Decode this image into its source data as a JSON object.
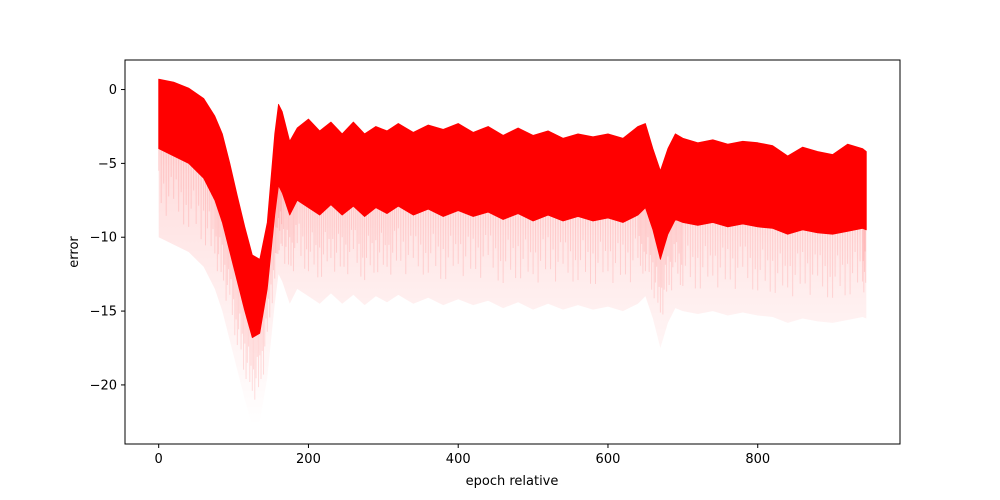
{
  "chart_data": {
    "type": "scatter",
    "title": "",
    "xlabel": "epoch relative",
    "ylabel": "error",
    "xlim": [
      -45,
      990
    ],
    "ylim": [
      -24,
      2
    ],
    "xticks": [
      0,
      200,
      400,
      600,
      800
    ],
    "yticks": [
      0,
      -5,
      -10,
      -15,
      -20
    ],
    "xtick_labels": [
      "0",
      "200",
      "400",
      "600",
      "800"
    ],
    "ytick_labels": [
      "0",
      "−5",
      "−10",
      "−15",
      "−20"
    ],
    "grid": false,
    "legend": "none",
    "color": "#ff0000",
    "series": [
      {
        "band_upper": {
          "x": [
            0,
            20,
            40,
            60,
            75,
            85,
            95,
            105,
            115,
            125,
            135,
            145,
            155,
            160,
            165,
            175,
            185,
            200,
            215,
            230,
            245,
            260,
            275,
            290,
            305,
            320,
            340,
            360,
            380,
            400,
            420,
            440,
            460,
            480,
            500,
            520,
            540,
            560,
            580,
            600,
            620,
            640,
            650,
            660,
            670,
            680,
            690,
            700,
            720,
            740,
            760,
            780,
            800,
            820,
            840,
            860,
            880,
            900,
            920,
            940,
            945
          ],
          "y": [
            0.7,
            0.5,
            0.1,
            -0.6,
            -1.8,
            -3.0,
            -5.0,
            -7.2,
            -9.3,
            -11.2,
            -11.5,
            -9.0,
            -3.0,
            -1.0,
            -1.5,
            -3.5,
            -2.6,
            -2.0,
            -2.8,
            -2.2,
            -3.0,
            -2.2,
            -3.0,
            -2.5,
            -2.8,
            -2.3,
            -2.9,
            -2.4,
            -2.7,
            -2.3,
            -2.9,
            -2.5,
            -3.1,
            -2.6,
            -3.1,
            -2.8,
            -3.3,
            -3.0,
            -3.2,
            -3.0,
            -3.3,
            -2.5,
            -2.3,
            -4.0,
            -5.5,
            -4.0,
            -3.0,
            -3.3,
            -3.6,
            -3.4,
            -3.7,
            -3.5,
            -3.6,
            -3.8,
            -4.5,
            -3.9,
            -4.2,
            -4.4,
            -3.7,
            -4.0,
            -4.2
          ]
        },
        "band_lower": {
          "x": [
            0,
            20,
            40,
            60,
            75,
            85,
            95,
            105,
            115,
            125,
            135,
            145,
            155,
            160,
            165,
            175,
            185,
            200,
            215,
            230,
            245,
            260,
            275,
            290,
            305,
            320,
            340,
            360,
            380,
            400,
            420,
            440,
            460,
            480,
            500,
            520,
            540,
            560,
            580,
            600,
            620,
            640,
            650,
            660,
            670,
            680,
            690,
            700,
            720,
            740,
            760,
            780,
            800,
            820,
            840,
            860,
            880,
            900,
            920,
            940,
            945
          ],
          "y": [
            -4.0,
            -4.5,
            -5.0,
            -6.0,
            -7.5,
            -9.0,
            -11.0,
            -13.0,
            -15.0,
            -16.8,
            -16.5,
            -13.5,
            -8.5,
            -6.5,
            -7.0,
            -8.5,
            -7.5,
            -8.0,
            -8.5,
            -7.8,
            -8.5,
            -7.9,
            -8.6,
            -8.0,
            -8.4,
            -7.9,
            -8.5,
            -8.1,
            -8.6,
            -8.2,
            -8.6,
            -8.3,
            -8.8,
            -8.4,
            -8.9,
            -8.5,
            -8.9,
            -8.6,
            -8.9,
            -8.7,
            -9.0,
            -8.5,
            -8.0,
            -9.5,
            -11.5,
            -9.8,
            -8.8,
            -9.0,
            -9.2,
            -9.0,
            -9.3,
            -9.1,
            -9.3,
            -9.4,
            -9.8,
            -9.5,
            -9.7,
            -9.8,
            -9.6,
            -9.4,
            -9.5
          ]
        }
      }
    ]
  }
}
